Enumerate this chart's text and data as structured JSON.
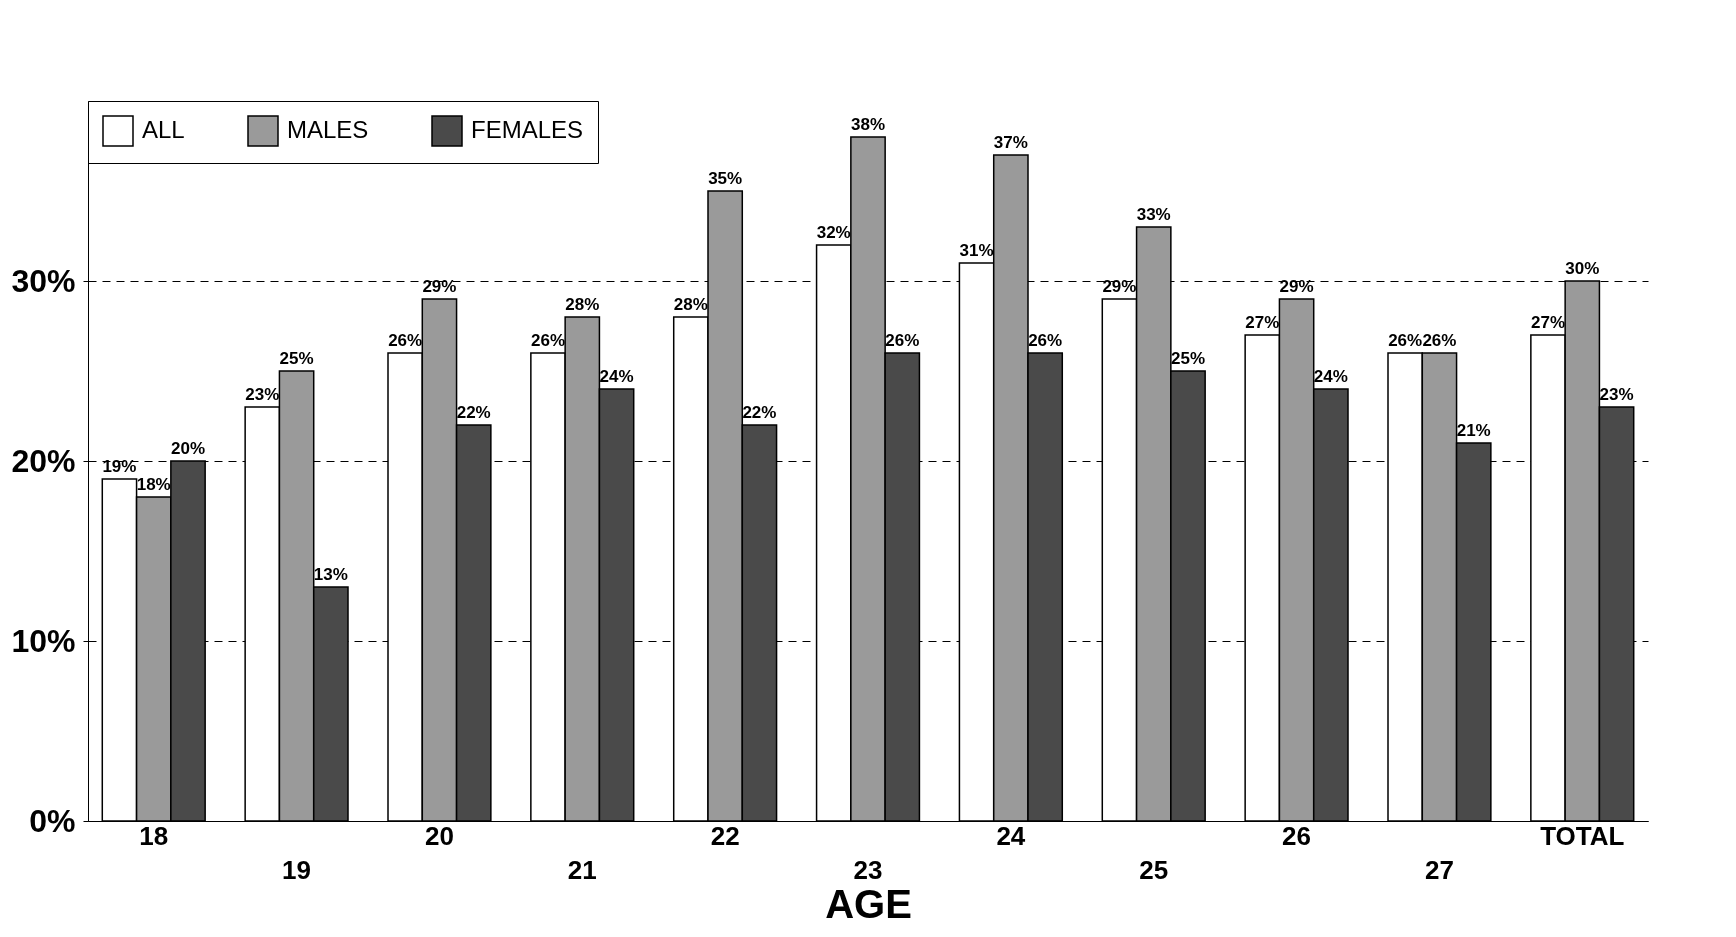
{
  "chart_data": {
    "type": "bar",
    "xlabel": "AGE",
    "categories": [
      "18",
      "19",
      "20",
      "21",
      "22",
      "23",
      "24",
      "25",
      "26",
      "27",
      "TOTAL"
    ],
    "series": [
      {
        "name": "ALL",
        "color": "#ffffff",
        "values": [
          19,
          23,
          26,
          26,
          28,
          32,
          31,
          29,
          27,
          26,
          27
        ],
        "value_labels": [
          "19%",
          "23%",
          "26%",
          "26%",
          "28%",
          "32%",
          "31%",
          "29%",
          "27%",
          "26%",
          "27%"
        ]
      },
      {
        "name": "MALES",
        "color": "#9a9a9a",
        "values": [
          18,
          25,
          29,
          28,
          35,
          38,
          37,
          33,
          29,
          26,
          30
        ],
        "value_labels": [
          "18%",
          "25%",
          "29%",
          "28%",
          "35%",
          "38%",
          "37%",
          "33%",
          "29%",
          "26%",
          "30%"
        ]
      },
      {
        "name": "FEMALES",
        "color": "#4a4a4a",
        "values": [
          20,
          13,
          22,
          24,
          22,
          26,
          26,
          25,
          24,
          21,
          23
        ],
        "value_labels": [
          "20%",
          "13%",
          "22%",
          "24%",
          "22%",
          "26%",
          "26%",
          "25%",
          "24%",
          "21%",
          "23%"
        ]
      }
    ],
    "ylim": [
      0,
      40
    ],
    "yticks": [
      {
        "value": 0,
        "label": "0%"
      },
      {
        "value": 10,
        "label": "10%"
      },
      {
        "value": 20,
        "label": "20%"
      },
      {
        "value": 30,
        "label": "30%"
      }
    ],
    "grid": "y",
    "legend": "top left"
  }
}
